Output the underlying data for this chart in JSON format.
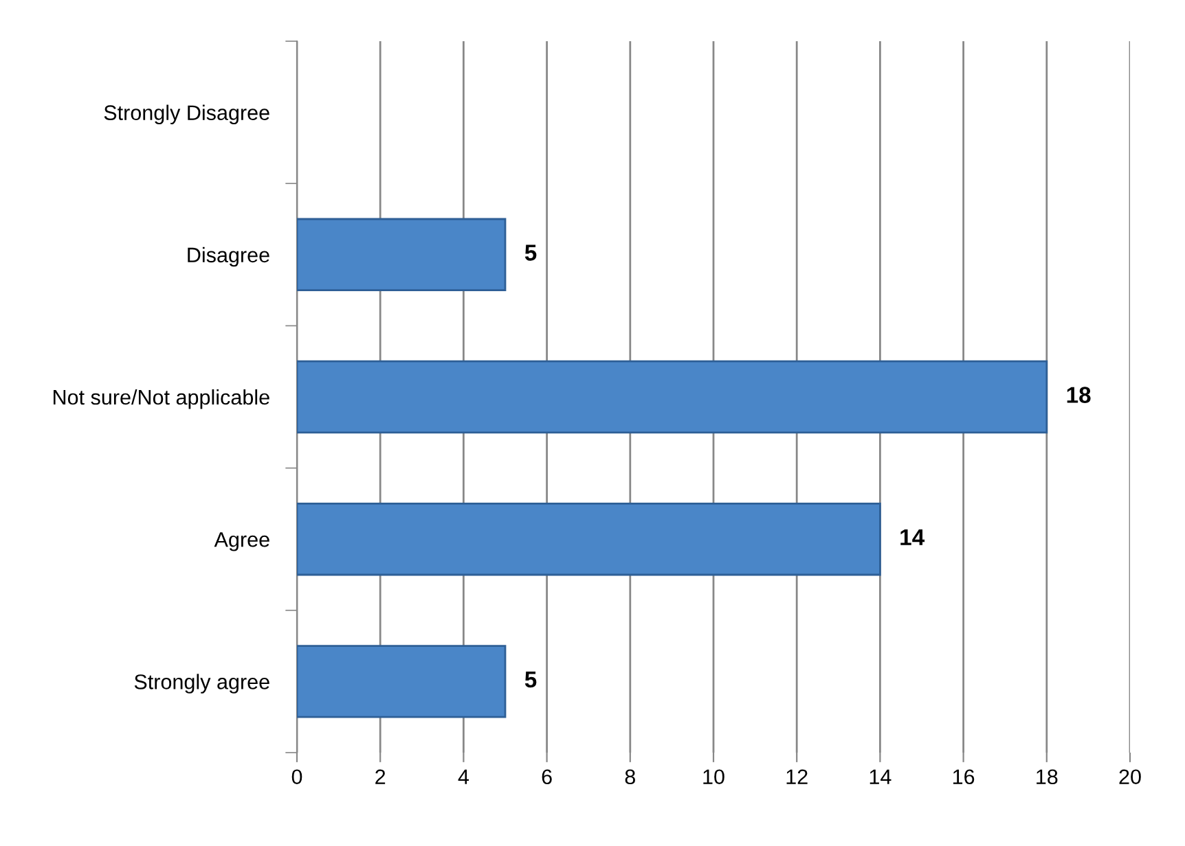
{
  "chart_data": {
    "type": "bar",
    "orientation": "horizontal",
    "categories": [
      "Strongly Disagree",
      "Disagree",
      "Not sure/Not applicable",
      "Agree",
      "Strongly agree"
    ],
    "values": [
      0,
      5,
      18,
      14,
      5
    ],
    "value_labels": [
      null,
      "5",
      "18",
      "14",
      "5"
    ],
    "color": "#4a86c8",
    "xlim": [
      0,
      20
    ],
    "xticks": [
      0,
      2,
      4,
      6,
      8,
      10,
      12,
      14,
      16,
      18,
      20
    ],
    "grid": "x"
  }
}
